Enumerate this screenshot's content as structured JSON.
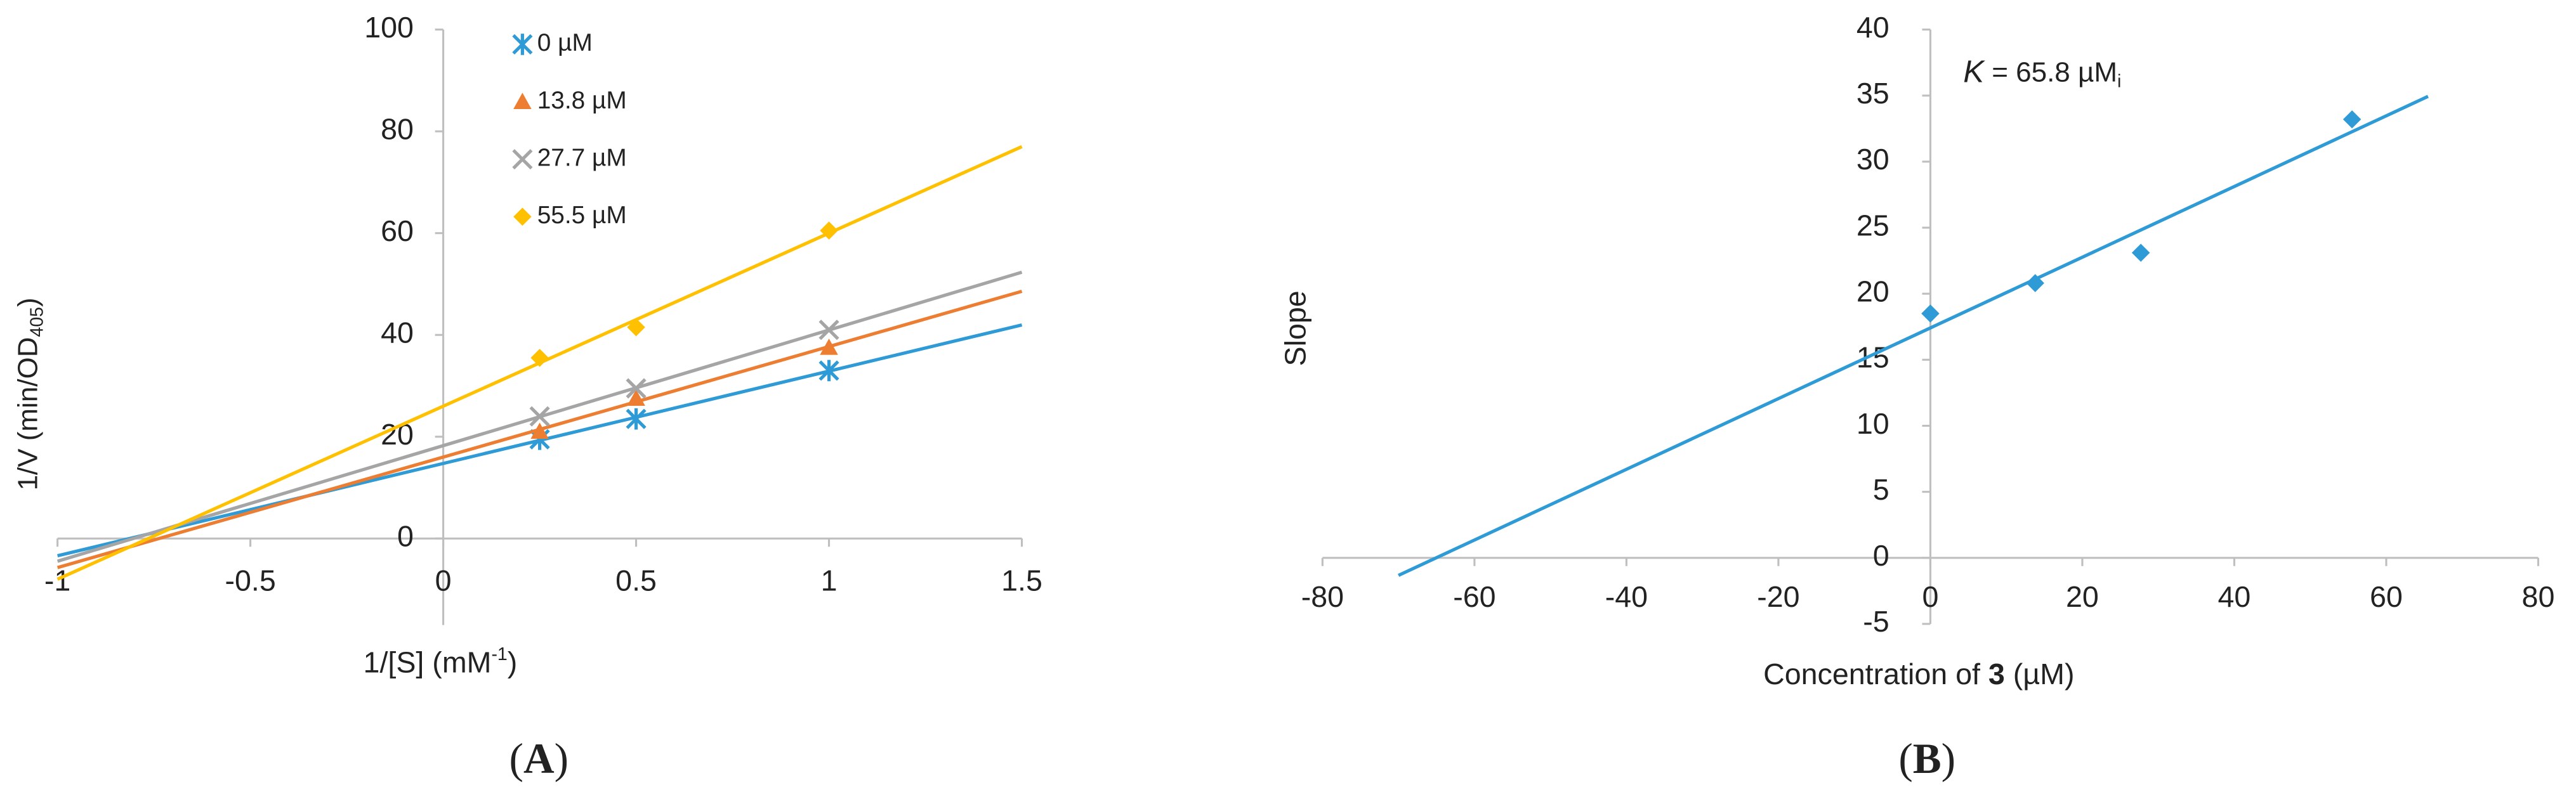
{
  "chart_data": [
    {
      "type": "scatter",
      "x": [
        0.25,
        0.5,
        1
      ],
      "series": [
        {
          "name": "0 µM",
          "color": "#2e9bd6",
          "marker": "asterisk",
          "values": [
            19.5,
            23.5,
            33
          ]
        },
        {
          "name": "13.8 µM",
          "color": "#ed7d31",
          "marker": "triangle",
          "values": [
            21,
            27.5,
            37.5
          ]
        },
        {
          "name": "27.7 µM",
          "color": "#a5a5a5",
          "marker": "x",
          "values": [
            24,
            29.5,
            41
          ]
        },
        {
          "name": "55.5 µM",
          "color": "#ffc000",
          "marker": "diamond",
          "values": [
            35.5,
            41.5,
            60.5
          ]
        }
      ],
      "xlim": [
        -1,
        1.5
      ],
      "xticks": [
        -1,
        -0.5,
        0,
        0.5,
        1,
        1.5
      ],
      "ylim": [
        -17,
        100
      ],
      "yticks": [
        0,
        20,
        40,
        60,
        80,
        100
      ],
      "trendline": true,
      "trendline_range": [
        -1,
        1.5
      ],
      "x_label": {
        "text": "1/[S] (mM",
        "sup": "-1",
        "end": ")"
      },
      "y_label": {
        "text": "1/V (min/OD",
        "sub": "405",
        "end": ")"
      },
      "legend": "top-left",
      "caption": [
        "(",
        "A",
        ")"
      ]
    },
    {
      "type": "scatter",
      "x": [
        0,
        13.8,
        27.7,
        55.5
      ],
      "series": [
        {
          "color": "#2e9bd6",
          "marker": "diamond",
          "values": [
            18.5,
            20.8,
            23.1,
            33.2
          ]
        }
      ],
      "xlim": [
        -80,
        80
      ],
      "xticks": [
        -80,
        -60,
        -40,
        -20,
        0,
        20,
        40,
        60,
        80
      ],
      "ylim": [
        -5,
        40
      ],
      "yticks": [
        -5,
        0,
        5,
        10,
        15,
        20,
        25,
        30,
        35,
        40
      ],
      "trendline": true,
      "trendline_range": [
        -70,
        65.5
      ],
      "x_label": {
        "text": "Concentration of ",
        "bold": "3",
        "end": " (µM)"
      },
      "y_label": {
        "text": "Slope"
      },
      "annotation": {
        "italic": "K",
        "sub": "i",
        "text": " = 65.8 µM"
      },
      "caption": [
        "(",
        "B",
        ")"
      ]
    }
  ]
}
